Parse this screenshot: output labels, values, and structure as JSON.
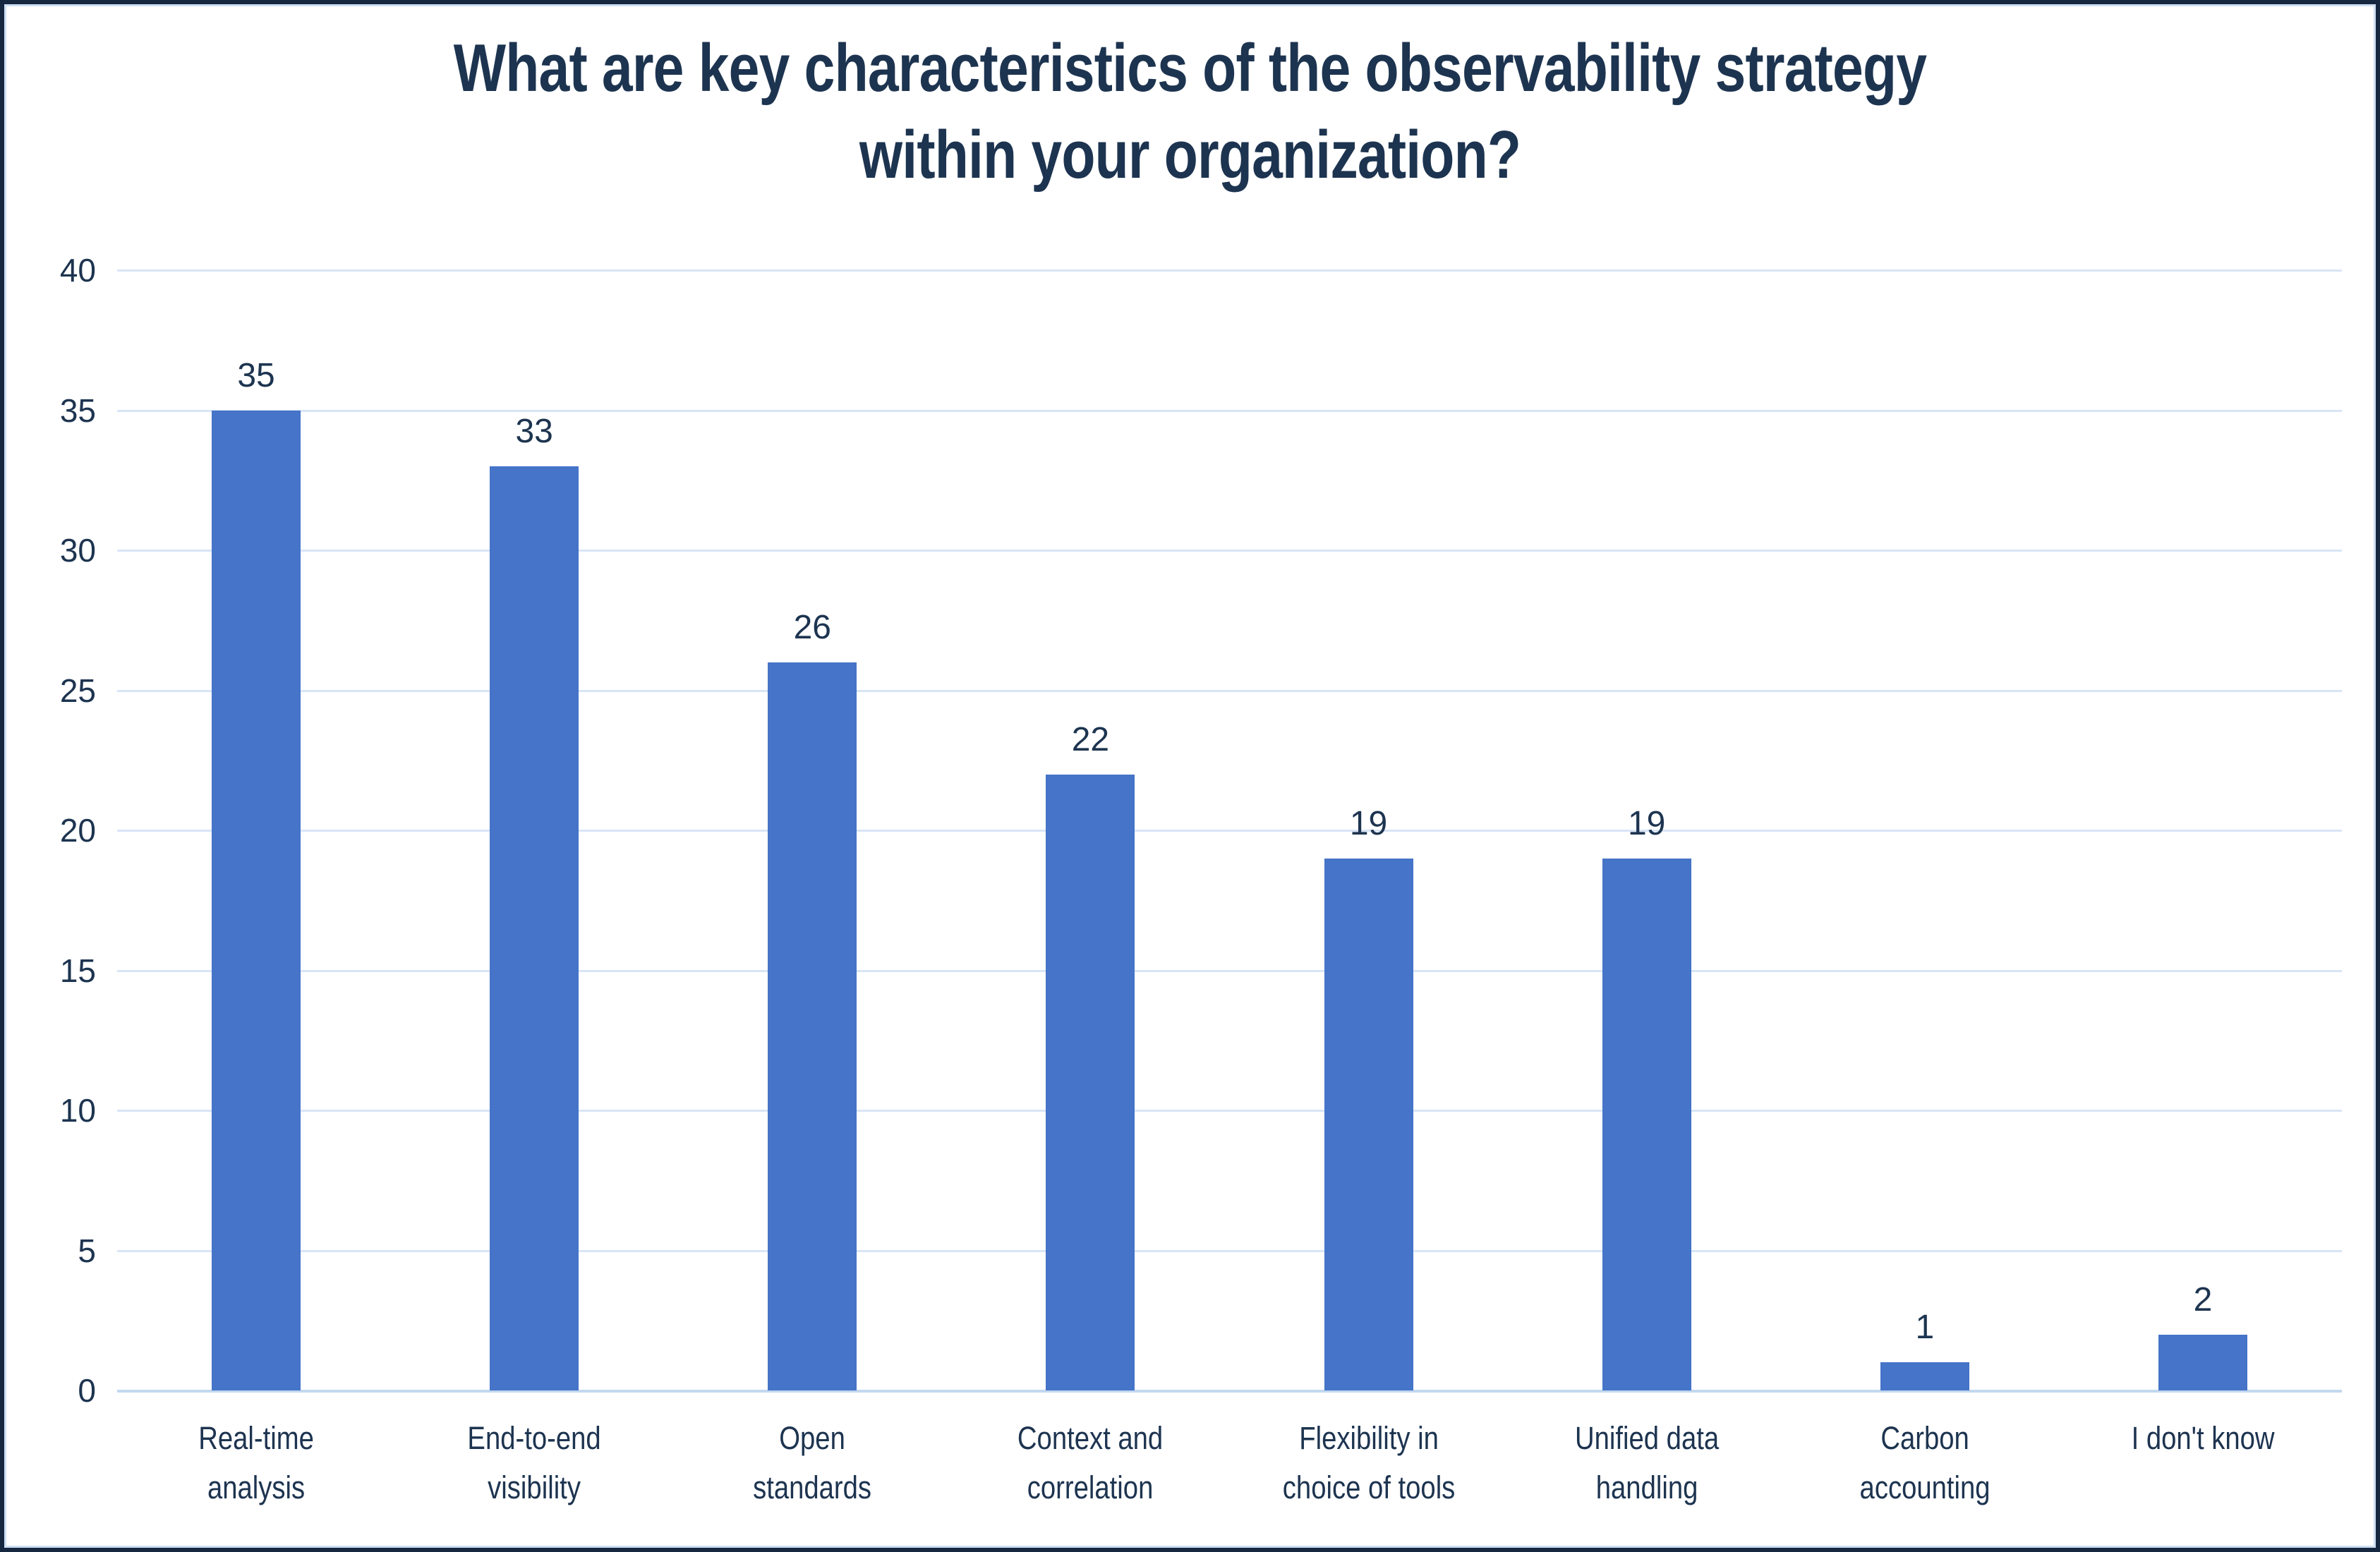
{
  "title": {
    "line1": "What are key characteristics of the observability strategy",
    "line2": "within your organization?"
  },
  "chart_data": {
    "type": "bar",
    "title": "What are key characteristics of the observability strategy within your organization?",
    "categories": [
      "Real-time analysis",
      "End-to-end visibility",
      "Open standards",
      "Context and correlation",
      "Flexibility in choice of tools",
      "Unified data handling",
      "Carbon accounting",
      "I don't know"
    ],
    "category_label_lines": [
      [
        "Real-time",
        "analysis"
      ],
      [
        "End-to-end",
        "visibility"
      ],
      [
        "Open",
        "standards"
      ],
      [
        "Context and",
        "correlation"
      ],
      [
        "Flexibility in",
        "choice of tools"
      ],
      [
        "Unified data",
        "handling"
      ],
      [
        "Carbon",
        "accounting"
      ],
      [
        "I don't know"
      ]
    ],
    "values": [
      35,
      33,
      26,
      22,
      19,
      19,
      1,
      2
    ],
    "data_labels": [
      "35",
      "33",
      "26",
      "22",
      "19",
      "19",
      "1",
      "2"
    ],
    "y_ticks": [
      0,
      5,
      10,
      15,
      20,
      25,
      30,
      35,
      40
    ],
    "ylim": [
      0,
      40
    ],
    "xlabel": "",
    "ylabel": "",
    "grid": "horizontal",
    "legend": "none",
    "colors": {
      "bar": "#4574C8",
      "text": "#1D3450",
      "gridline": "#D8E5F5",
      "baseline": "#C3D8F0",
      "frame": "#CFE0F3",
      "outer_border": "#16283F",
      "background": "#FFFFFF"
    }
  }
}
